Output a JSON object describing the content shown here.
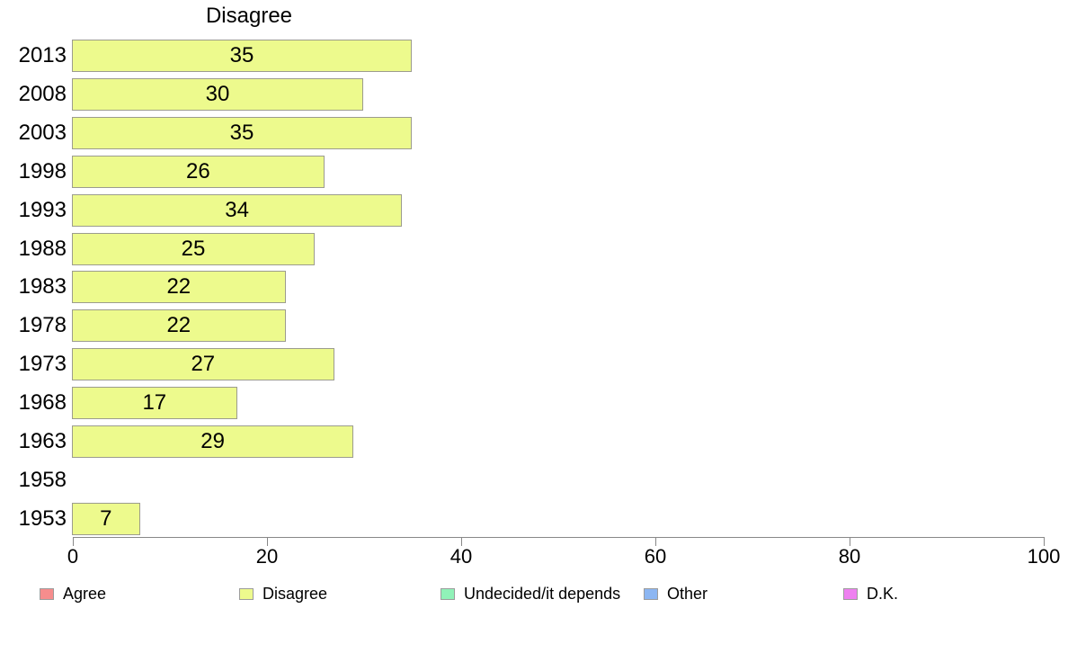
{
  "chart_data": {
    "type": "bar",
    "orientation": "horizontal",
    "title": "Disagree",
    "series_name": "Disagree",
    "categories": [
      "2013",
      "2008",
      "2003",
      "1998",
      "1993",
      "1988",
      "1983",
      "1978",
      "1973",
      "1968",
      "1963",
      "1958",
      "1953"
    ],
    "values": [
      35,
      30,
      35,
      26,
      34,
      25,
      22,
      22,
      27,
      17,
      29,
      null,
      7
    ],
    "xlim": [
      0,
      100
    ],
    "x_ticks": [
      0,
      20,
      40,
      60,
      80,
      100
    ],
    "grid": false,
    "bar_color": "#edfa8d",
    "bar_border_color": "#9c9c8e",
    "axis_color": "#888888",
    "text_color": "#000000",
    "legend_position": "bottom",
    "legend": [
      {
        "label": "Agree",
        "color": "#f68d8d"
      },
      {
        "label": "Disagree",
        "color": "#edfa8d"
      },
      {
        "label": "Undecided/it depends",
        "color": "#90f2b8"
      },
      {
        "label": "Other",
        "color": "#8cb6f2"
      },
      {
        "label": "D.K.",
        "color": "#ee80f0"
      }
    ]
  }
}
